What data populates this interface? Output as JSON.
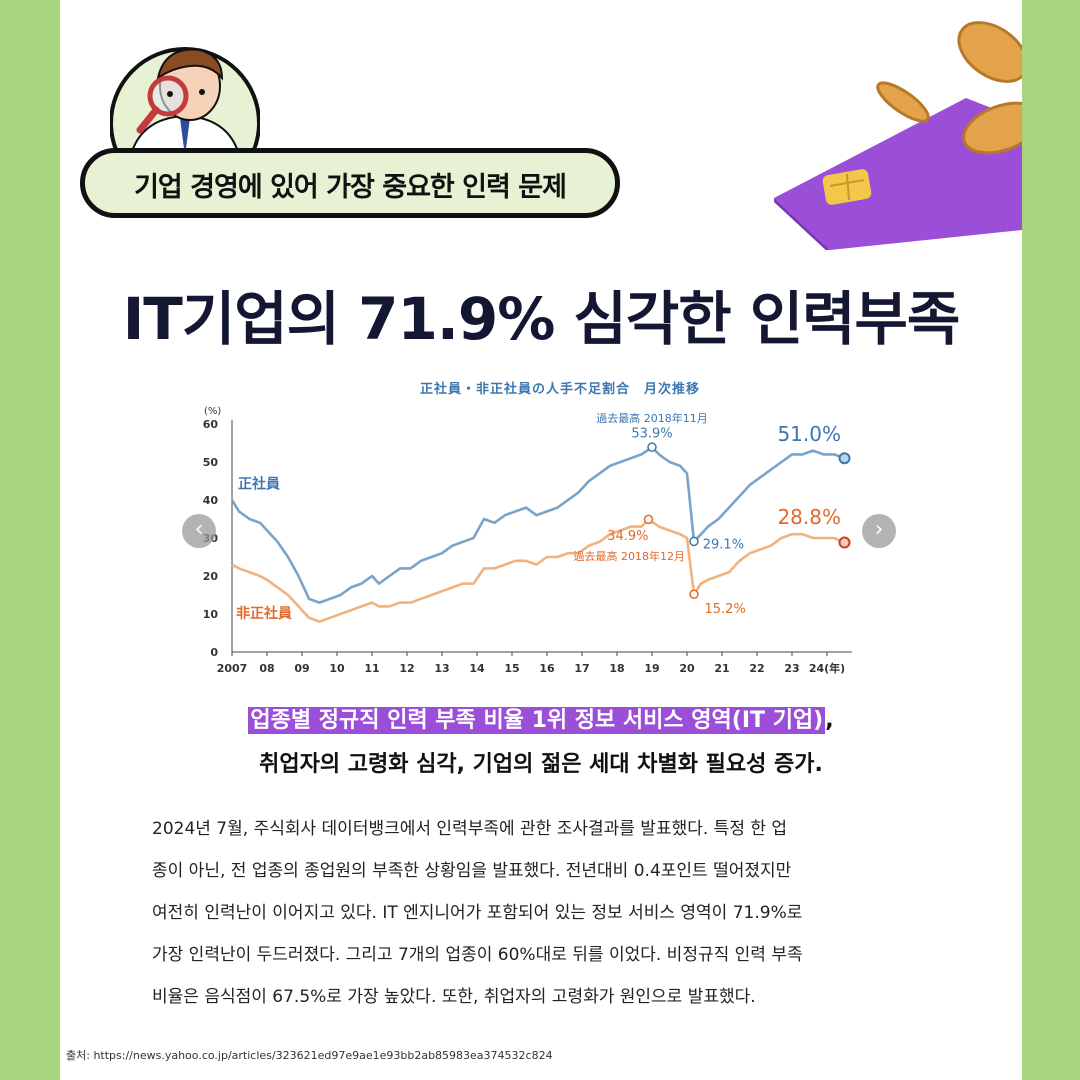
{
  "badge": {
    "label": "기업 경영에 있어 가장 중요한 인력 문제"
  },
  "headline": "IT기업의 71.9% 심각한 인력부족",
  "chart_data": {
    "type": "line",
    "title": "正社員・非正社員の人手不足割合　月次推移",
    "ylabel": "(%)",
    "xlabel": "",
    "ylim": [
      0,
      60
    ],
    "yticks": [
      "0",
      "10",
      "20",
      "30",
      "40",
      "50",
      "60"
    ],
    "xticks": [
      "2007",
      "08",
      "09",
      "10",
      "11",
      "12",
      "13",
      "14",
      "15",
      "16",
      "17",
      "18",
      "19",
      "20",
      "21",
      "22",
      "23",
      "24(年)"
    ],
    "xlim": [
      2007,
      2024.6
    ],
    "series": [
      {
        "name": "正社員",
        "color": "#7aa3c9",
        "x": [
          2007.0,
          2007.2,
          2007.5,
          2007.8,
          2008.0,
          2008.3,
          2008.6,
          2008.9,
          2009.2,
          2009.5,
          2009.8,
          2010.1,
          2010.4,
          2010.7,
          2011.0,
          2011.2,
          2011.5,
          2011.8,
          2012.1,
          2012.4,
          2012.7,
          2013.0,
          2013.3,
          2013.6,
          2013.9,
          2014.2,
          2014.5,
          2014.8,
          2015.1,
          2015.4,
          2015.7,
          2016.0,
          2016.3,
          2016.6,
          2016.9,
          2017.2,
          2017.5,
          2017.8,
          2018.1,
          2018.4,
          2018.7,
          2019.0,
          2019.2,
          2019.5,
          2019.8,
          2020.0,
          2020.2,
          2020.4,
          2020.6,
          2020.9,
          2021.2,
          2021.5,
          2021.8,
          2022.1,
          2022.4,
          2022.7,
          2023.0,
          2023.3,
          2023.6,
          2023.9,
          2024.2,
          2024.5
        ],
        "y": [
          40,
          37,
          35,
          34,
          32,
          29,
          25,
          20,
          14,
          13,
          14,
          15,
          17,
          18,
          20,
          18,
          20,
          22,
          22,
          24,
          25,
          26,
          28,
          29,
          30,
          35,
          34,
          36,
          37,
          38,
          36,
          37,
          38,
          40,
          42,
          45,
          47,
          49,
          50,
          51,
          52,
          53.9,
          52,
          50,
          49,
          47,
          29.1,
          31,
          33,
          35,
          38,
          41,
          44,
          46,
          48,
          50,
          52,
          52,
          53,
          52,
          52,
          51.0
        ]
      },
      {
        "name": "非正社員",
        "color": "#f2b27e",
        "x": [
          2007.0,
          2007.2,
          2007.5,
          2007.8,
          2008.0,
          2008.3,
          2008.6,
          2008.9,
          2009.2,
          2009.5,
          2009.8,
          2010.1,
          2010.4,
          2010.7,
          2011.0,
          2011.2,
          2011.5,
          2011.8,
          2012.1,
          2012.4,
          2012.7,
          2013.0,
          2013.3,
          2013.6,
          2013.9,
          2014.2,
          2014.5,
          2014.8,
          2015.1,
          2015.4,
          2015.7,
          2016.0,
          2016.3,
          2016.6,
          2016.9,
          2017.2,
          2017.5,
          2017.8,
          2018.1,
          2018.4,
          2018.7,
          2018.9,
          2019.2,
          2019.5,
          2019.8,
          2020.0,
          2020.2,
          2020.4,
          2020.6,
          2020.9,
          2021.2,
          2021.5,
          2021.8,
          2022.1,
          2022.4,
          2022.7,
          2023.0,
          2023.3,
          2023.6,
          2023.9,
          2024.2,
          2024.5
        ],
        "y": [
          23,
          22,
          21,
          20,
          19,
          17,
          15,
          12,
          9,
          8,
          9,
          10,
          11,
          12,
          13,
          12,
          12,
          13,
          13,
          14,
          15,
          16,
          17,
          18,
          18,
          22,
          22,
          23,
          24,
          24,
          23,
          25,
          25,
          26,
          26,
          28,
          29,
          31,
          32,
          33,
          33,
          34.9,
          33,
          32,
          31,
          30,
          15.2,
          18,
          19,
          20,
          21,
          24,
          26,
          27,
          28,
          30,
          31,
          31,
          30,
          30,
          30,
          28.8
        ]
      }
    ],
    "series_labels": [
      {
        "text": "正社員",
        "color": "#3e77b0"
      },
      {
        "text": "非正社員",
        "color": "#e06a2a"
      }
    ],
    "annotations": [
      {
        "text": "過去最高 2018年11月",
        "color": "#3e77b0"
      },
      {
        "text": "53.9%",
        "color": "#3e77b0"
      },
      {
        "text": "51.0%",
        "color": "#3e77b0"
      },
      {
        "text": "29.1%",
        "color": "#3e77b0"
      },
      {
        "text": "34.9%",
        "color": "#e06a2a"
      },
      {
        "text": "過去最高 2018年12月",
        "color": "#e06a2a"
      },
      {
        "text": "28.8%",
        "color": "#e06a2a"
      },
      {
        "text": "15.2%",
        "color": "#e06a2a"
      }
    ],
    "grid": false
  },
  "nav": {
    "prev_icon": "chevron-left-icon",
    "next_icon": "chevron-right-icon",
    "prev_glyph": "‹",
    "next_glyph": "›"
  },
  "subheading": {
    "highlight": "업종별 정규직 인력 부족 비율 1위 정보 서비스 영역(IT 기업)",
    "comma": ",",
    "line2": "취업자의 고령화 심각, 기업의 젊은 세대 차별화 필요성 증가."
  },
  "body": [
    "  2024년 7월, 주식회사 데이터뱅크에서 인력부족에 관한 조사결과를 발표했다. 특정 한 업",
    "종이 아닌, 전 업종의 종업원의 부족한 상황임을 발표했다. 전년대비 0.4포인트 떨어졌지만",
    "여전히 인력난이 이어지고 있다. IT 엔지니어가 포함되어 있는 정보 서비스 영역이 71.9%로",
    "가장 인력난이 두드러졌다. 그리고 7개의 업종이 60%대로 뒤를 이었다. 비정규직 인력 부족",
    "비율은 음식점이 67.5%로 가장 높았다.  또한, 취업자의 고령화가 원인으로 발표했다."
  ],
  "source": "출처: https://news.yahoo.co.jp/articles/323621ed97e9ae1e93bb2ab85983ea374532c824",
  "colors": {
    "frame": "#a9d47f",
    "badge_bg": "#e6f2d3",
    "headline": "#141732",
    "highlight": "#9b4fd8",
    "card": "#9b4fd8",
    "coin": "#e3a34a"
  }
}
